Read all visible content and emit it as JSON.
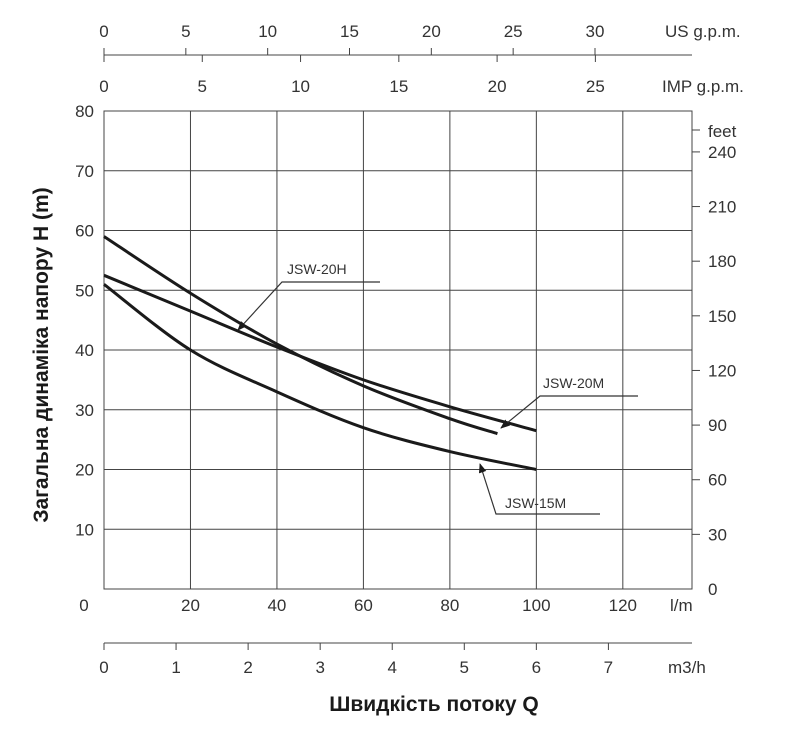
{
  "chart_data": {
    "type": "line",
    "xlabel": "Швидкість потоку Q",
    "ylabel": "Загальна динаміка напору H (m)",
    "x_unit": "l/m",
    "xlim": [
      0,
      136
    ],
    "ylim": [
      0,
      80
    ],
    "x_ticks": [
      "0",
      "20",
      "40",
      "60",
      "80",
      "100",
      "120"
    ],
    "y_ticks": [
      "10",
      "20",
      "30",
      "40",
      "50",
      "60",
      "70",
      "80"
    ],
    "grid": true,
    "secondary_axes": {
      "us_gpm": {
        "unit": "US g.p.m.",
        "ticks": [
          "0",
          "5",
          "10",
          "15",
          "20",
          "25",
          "30"
        ]
      },
      "imp_gpm": {
        "unit": "IMP g.p.m.",
        "ticks": [
          "0",
          "5",
          "10",
          "15",
          "20",
          "25"
        ]
      },
      "m3h": {
        "unit": "m3/h",
        "ticks": [
          "0",
          "1",
          "2",
          "3",
          "4",
          "5",
          "6",
          "7"
        ]
      },
      "feet": {
        "unit": "feet",
        "ticks": [
          "0",
          "30",
          "60",
          "90",
          "120",
          "150",
          "180",
          "210",
          "240"
        ]
      },
      "bottom_left_zero": "0"
    },
    "series": [
      {
        "name": "JSW-20H",
        "x": [
          0,
          20,
          40,
          60,
          80,
          91
        ],
        "y": [
          59,
          49.5,
          41,
          34,
          28.5,
          26
        ]
      },
      {
        "name": "JSW-20M",
        "x": [
          0,
          20,
          40,
          60,
          80,
          100
        ],
        "y": [
          52.5,
          46.5,
          40.5,
          35,
          30.5,
          26.5
        ]
      },
      {
        "name": "JSW-15M",
        "x": [
          0,
          20,
          40,
          60,
          80,
          100
        ],
        "y": [
          51,
          40,
          33,
          27,
          23,
          20
        ]
      }
    ]
  }
}
